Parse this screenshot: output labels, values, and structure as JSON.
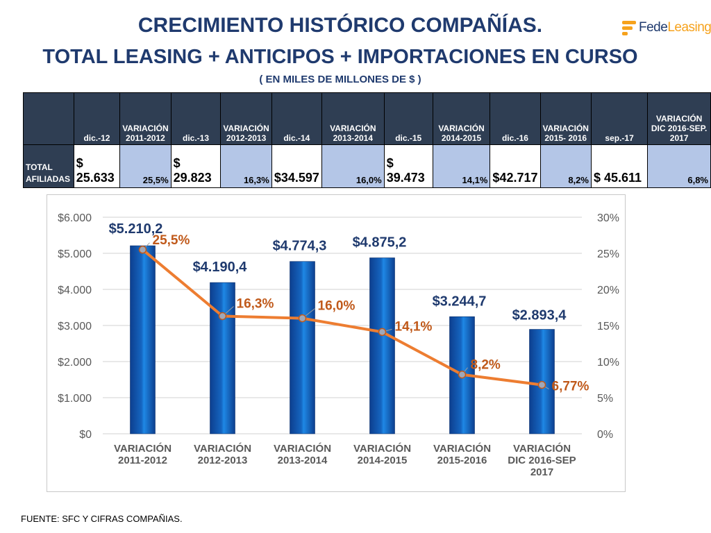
{
  "header": {
    "title_line1": "CRECIMIENTO HISTÓRICO COMPAÑÍAS.",
    "title_line2": "TOTAL LEASING + ANTICIPOS + IMPORTACIONES EN CURSO",
    "subtitle": "( EN MILES DE  MILLONES DE $ )",
    "logo_text_a": "Fede",
    "logo_text_b": "Leasing"
  },
  "table": {
    "headers": [
      "",
      "dic.-12",
      "VARIACIÓN 2011-2012",
      "dic.-13",
      "VARIACIÓN 2012-2013",
      "dic.-14",
      "VARIACIÓN 2013-2014",
      "dic.-15",
      "VARIACIÓN 2014-2015",
      "dic.-16",
      "VARIACIÓN 2015- 2016",
      "sep.-17",
      "VARIACIÓN DIC 2016-SEP. 2017"
    ],
    "row_label": "TOTAL AFILIADAS",
    "cells": [
      "$ 25.633",
      "25,5%",
      "$   29.823",
      "16,3%",
      "$34.597",
      "16,0%",
      "$ 39.473",
      "14,1%",
      "$42.717",
      "8,2%",
      "$     45.611",
      "6,8%"
    ]
  },
  "chart_data": {
    "type": "bar",
    "categories": [
      "VARIACIÓN 2011-2012",
      "VARIACIÓN 2012-2013",
      "VARIACIÓN 2013-2014",
      "VARIACIÓN 2014-2015",
      "VARIACIÓN 2015-2016",
      "VARIACIÓN DIC 2016-SEP 2017"
    ],
    "series": [
      {
        "type": "bar",
        "axis": "left",
        "values": [
          5210.2,
          4190.4,
          4774.3,
          4875.2,
          3244.7,
          2893.4
        ],
        "labels": [
          "$5.210,2",
          "$4.190,4",
          "$4.774,3",
          "$4.875,2",
          "$3.244,7",
          "$2.893,4"
        ]
      },
      {
        "type": "line",
        "axis": "right",
        "values": [
          25.5,
          16.3,
          16.0,
          14.1,
          8.2,
          6.77
        ],
        "labels": [
          "25,5%",
          "16,3%",
          "16,0%",
          "14,1%",
          "8,2%",
          "6,77%"
        ]
      }
    ],
    "y_left": {
      "min": 0,
      "max": 6000,
      "ticks": [
        "$0",
        "$1.000",
        "$2.000",
        "$3.000",
        "$4.000",
        "$5.000",
        "$6.000"
      ]
    },
    "y_right": {
      "min": 0,
      "max": 30,
      "ticks": [
        "0%",
        "5%",
        "10%",
        "15%",
        "20%",
        "25%",
        "30%"
      ]
    },
    "grid": true,
    "colors": {
      "bar": "#1565c0",
      "line": "#ed7d31",
      "bar_label": "#1f3a6e",
      "line_label": "#c0591a"
    }
  },
  "footer": "FUENTE: SFC Y CIFRAS COMPAÑIAS."
}
